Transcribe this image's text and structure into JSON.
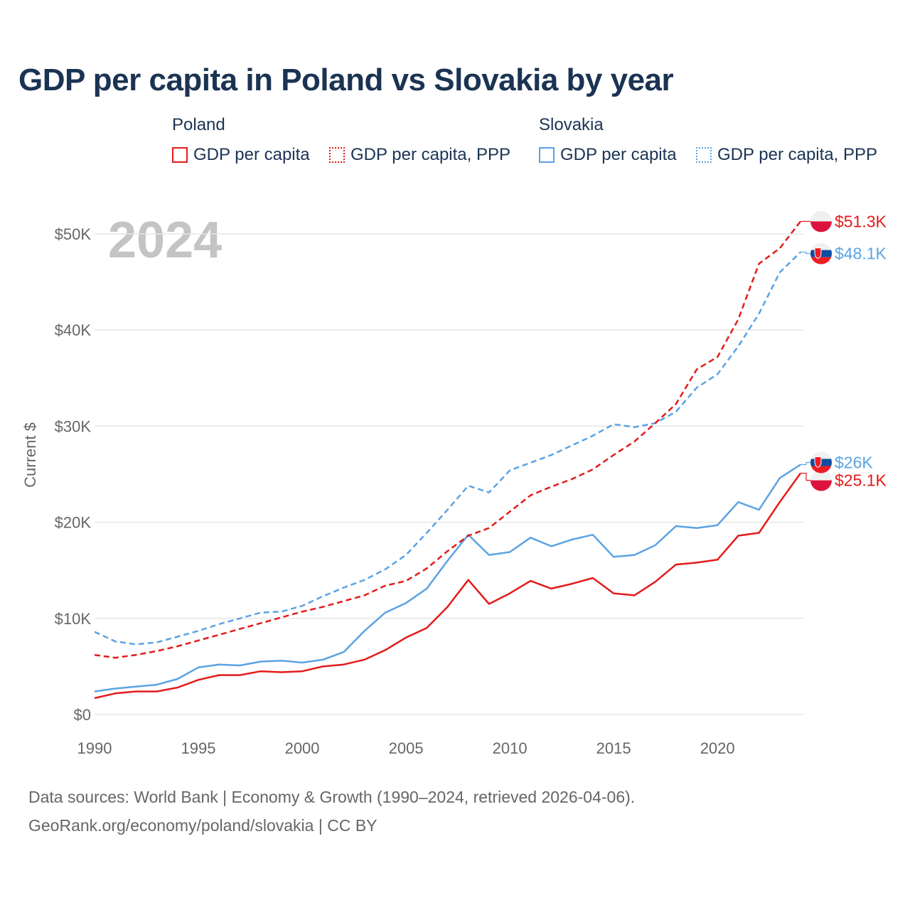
{
  "title": "GDP per capita in Poland vs Slovakia by year",
  "legend": {
    "groups": [
      {
        "name": "Poland",
        "items": [
          "GDP per capita",
          "GDP per capita, PPP"
        ]
      },
      {
        "name": "Slovakia",
        "items": [
          "GDP per capita",
          "GDP per capita, PPP"
        ]
      }
    ]
  },
  "year_watermark": "2024",
  "footer": {
    "line1": "Data sources: World Bank | Economy & Growth (1990–2024, retrieved 2026-04-06).",
    "line2": "GeoRank.org/economy/poland/slovakia | CC BY"
  },
  "colors": {
    "poland": "#e31b1b",
    "slovakia": "#5ba3e3",
    "grid": "#e6e6e6"
  },
  "chart_data": {
    "type": "line",
    "title": "GDP per capita in Poland vs Slovakia by year",
    "xlabel": "",
    "ylabel": "Current $",
    "xlim": [
      1990,
      2024
    ],
    "ylim": [
      0,
      50000
    ],
    "x_ticks": [
      1990,
      1995,
      2000,
      2005,
      2010,
      2015,
      2020
    ],
    "x_tick_labels": [
      "1990",
      "1995",
      "2000",
      "2005",
      "2010",
      "2015",
      "2020"
    ],
    "y_ticks": [
      0,
      10000,
      20000,
      30000,
      40000,
      50000
    ],
    "y_tick_labels": [
      "$0",
      "$10K",
      "$20K",
      "$30K",
      "$40K",
      "$50K"
    ],
    "grid": true,
    "x": [
      1990,
      1991,
      1992,
      1993,
      1994,
      1995,
      1996,
      1997,
      1998,
      1999,
      2000,
      2001,
      2002,
      2003,
      2004,
      2005,
      2006,
      2007,
      2008,
      2009,
      2010,
      2011,
      2012,
      2013,
      2014,
      2015,
      2016,
      2017,
      2018,
      2019,
      2020,
      2021,
      2022,
      2023,
      2024
    ],
    "series": [
      {
        "name": "Poland GDP per capita",
        "country": "poland",
        "style": "solid",
        "values": [
          1700,
          2200,
          2400,
          2400,
          2800,
          3600,
          4100,
          4100,
          4500,
          4400,
          4500,
          5000,
          5200,
          5700,
          6700,
          8000,
          9000,
          11200,
          14000,
          11500,
          12600,
          13900,
          13100,
          13600,
          14200,
          12600,
          12400,
          13800,
          15600,
          15800,
          16100,
          18600,
          18900,
          22100,
          25100
        ],
        "end_label": "$25.1K"
      },
      {
        "name": "Poland GDP per capita, PPP",
        "country": "poland",
        "style": "dashed",
        "values": [
          6200,
          5900,
          6200,
          6600,
          7100,
          7700,
          8300,
          8900,
          9500,
          10100,
          10700,
          11200,
          11800,
          12400,
          13400,
          13900,
          15200,
          17000,
          18600,
          19400,
          21100,
          22800,
          23700,
          24500,
          25500,
          27000,
          28400,
          30300,
          32300,
          35900,
          37200,
          41100,
          46900,
          48500,
          51300
        ],
        "end_label": "$51.3K"
      },
      {
        "name": "Slovakia GDP per capita",
        "country": "slovakia",
        "style": "solid",
        "values": [
          2400,
          2700,
          2900,
          3100,
          3700,
          4900,
          5200,
          5100,
          5500,
          5600,
          5400,
          5700,
          6500,
          8700,
          10600,
          11600,
          13100,
          16000,
          18700,
          16600,
          16900,
          18400,
          17500,
          18200,
          18700,
          16400,
          16600,
          17600,
          19600,
          19400,
          19700,
          22100,
          21300,
          24600,
          26000
        ],
        "end_label": "$26K"
      },
      {
        "name": "Slovakia GDP per capita, PPP",
        "country": "slovakia",
        "style": "dashed",
        "values": [
          8600,
          7600,
          7300,
          7500,
          8100,
          8700,
          9400,
          10000,
          10600,
          10700,
          11300,
          12300,
          13200,
          14000,
          15100,
          16600,
          18900,
          21300,
          23800,
          23100,
          25400,
          26200,
          27000,
          28000,
          29000,
          30200,
          29900,
          30300,
          31500,
          34000,
          35400,
          38300,
          41700,
          46000,
          48100
        ],
        "end_label": "$48.1K"
      }
    ]
  }
}
